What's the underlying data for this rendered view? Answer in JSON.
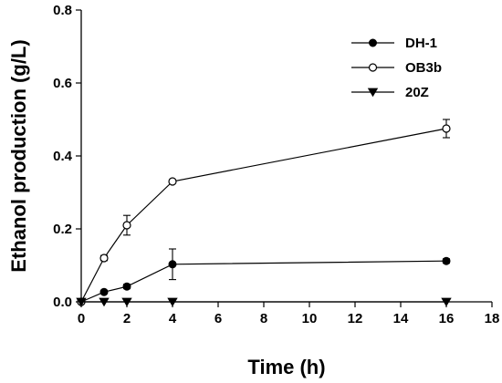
{
  "chart_data": {
    "type": "line",
    "xlabel": "Time (h)",
    "ylabel": "Ethanol production (g/L)",
    "xlim": [
      0,
      18
    ],
    "ylim": [
      0,
      0.8
    ],
    "xticks": [
      0,
      2,
      4,
      6,
      8,
      10,
      12,
      14,
      16,
      18
    ],
    "yticks": [
      0.0,
      0.2,
      0.4,
      0.6,
      0.8
    ],
    "ytick_labels": [
      "0.0",
      "0.2",
      "0.4",
      "0.6",
      "0.8"
    ],
    "grid": false,
    "legend_position": "top-right",
    "series": [
      {
        "name": "DH-1",
        "marker": "filled-circle",
        "x": [
          0,
          1,
          2,
          4,
          16
        ],
        "y": [
          0.0,
          0.027,
          0.042,
          0.103,
          0.112
        ],
        "yerr": [
          0.0,
          0.004,
          0.006,
          0.042,
          0.006
        ]
      },
      {
        "name": "OB3b",
        "marker": "open-circle",
        "x": [
          0,
          1,
          2,
          4,
          16
        ],
        "y": [
          0.0,
          0.12,
          0.21,
          0.33,
          0.475
        ],
        "yerr": [
          0.0,
          0.007,
          0.027,
          0.004,
          0.025
        ]
      },
      {
        "name": "20Z",
        "marker": "filled-triangle-down",
        "x": [
          0,
          1,
          2,
          4,
          16
        ],
        "y": [
          0.0,
          0.0,
          0.0,
          0.0,
          0.0
        ],
        "yerr": [
          0.0,
          0.0,
          0.0,
          0.0,
          0.0
        ]
      }
    ]
  }
}
